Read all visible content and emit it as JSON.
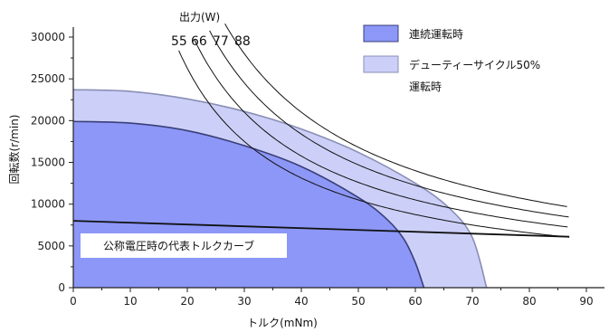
{
  "chart_data": {
    "type": "area",
    "xlabel": "トルク(mNm)",
    "ylabel": "回転数(r/min)",
    "xlim": [
      0,
      90
    ],
    "ylim": [
      0,
      30000
    ],
    "xticks": [
      "0",
      "10",
      "20",
      "30",
      "40",
      "50",
      "60",
      "70",
      "80",
      "90"
    ],
    "yticks": [
      "0",
      "5000",
      "10000",
      "15000",
      "20000",
      "25000",
      "30000"
    ],
    "colors": {
      "continuous_fill": "#8c97f7",
      "continuous_edge": "#3a3f78",
      "duty_fill": "#ccd0f8",
      "duty_edge": "#8a8fb5",
      "line": "#111111"
    },
    "series": [
      {
        "name": "連続運転時",
        "kind": "filled-region",
        "points": [
          [
            0,
            19900
          ],
          [
            10,
            19700
          ],
          [
            20,
            18800
          ],
          [
            30,
            17000
          ],
          [
            40,
            14500
          ],
          [
            50,
            10800
          ],
          [
            55,
            8200
          ],
          [
            58,
            5800
          ],
          [
            60,
            3000
          ],
          [
            61.5,
            0
          ]
        ]
      },
      {
        "name": "デューティーサイクル50%運転時",
        "kind": "filled-region",
        "points": [
          [
            0,
            23700
          ],
          [
            10,
            23500
          ],
          [
            20,
            22600
          ],
          [
            30,
            21100
          ],
          [
            40,
            19000
          ],
          [
            50,
            16200
          ],
          [
            60,
            12500
          ],
          [
            66,
            9500
          ],
          [
            70,
            6000
          ],
          [
            72.5,
            0
          ]
        ]
      },
      {
        "name": "公称電圧時の代表トルクカーブ",
        "kind": "line",
        "points": [
          [
            0,
            8000
          ],
          [
            87,
            6100
          ]
        ]
      }
    ],
    "power_curves": {
      "title": "出力(W)",
      "labels": [
        "55",
        "66",
        "77",
        "88"
      ],
      "watts": [
        55,
        66,
        77,
        88
      ],
      "x_range": [
        18.5,
        87
      ]
    },
    "legend": {
      "position": "top-right",
      "entries": [
        "連続運転時",
        "デューティーサイクル50%",
        "運転時"
      ]
    },
    "annotation": "公称電圧時の代表トルクカーブ",
    "grid": false
  }
}
